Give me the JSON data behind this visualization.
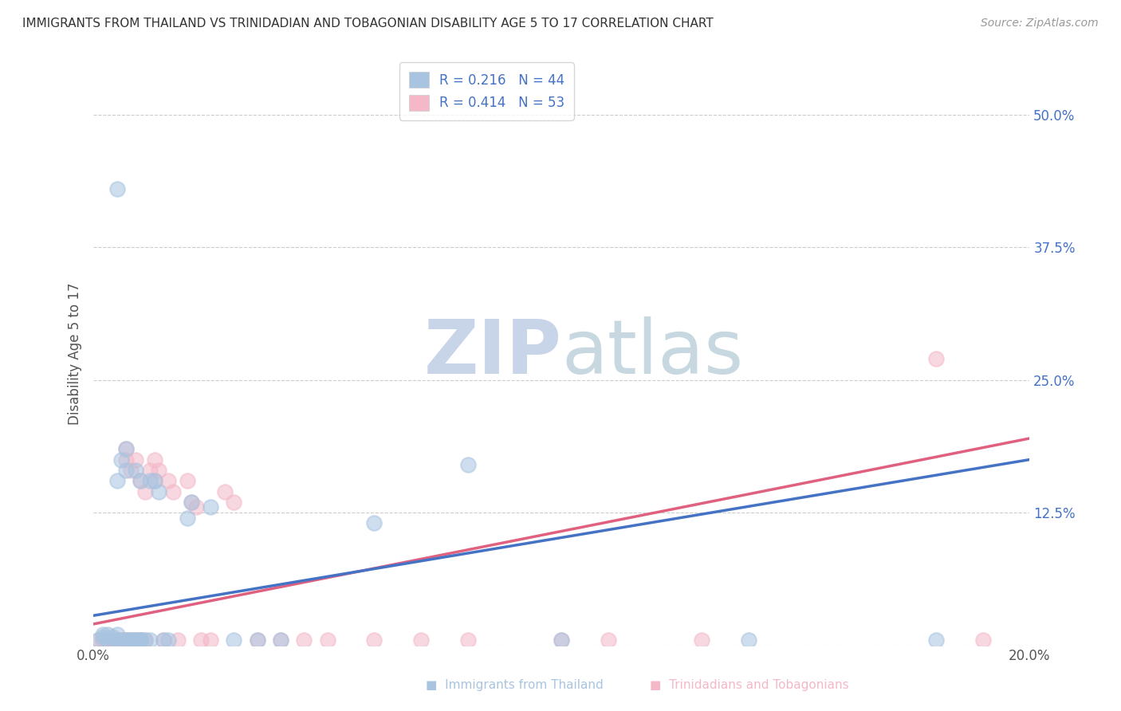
{
  "title": "IMMIGRANTS FROM THAILAND VS TRINIDADIAN AND TOBAGONIAN DISABILITY AGE 5 TO 17 CORRELATION CHART",
  "source": "Source: ZipAtlas.com",
  "ylabel": "Disability Age 5 to 17",
  "xlabel": "",
  "xlim": [
    0.0,
    0.2
  ],
  "ylim": [
    0.0,
    0.55
  ],
  "xticks": [
    0.0,
    0.05,
    0.1,
    0.15,
    0.2
  ],
  "xticklabels": [
    "0.0%",
    "",
    "",
    "",
    "20.0%"
  ],
  "yticks": [
    0.0,
    0.125,
    0.25,
    0.375,
    0.5
  ],
  "yticklabels": [
    "",
    "12.5%",
    "25.0%",
    "37.5%",
    "50.0%"
  ],
  "legend_labels": [
    "R = 0.216   N = 44",
    "R = 0.414   N = 53"
  ],
  "thailand_color": "#a8c4e0",
  "trinidad_color": "#f4b8c8",
  "trendline_thailand_color": "#4472c4",
  "trendline_trinidad_color": "#e06080",
  "thailand_trendline": [
    [
      0.0,
      0.028
    ],
    [
      0.2,
      0.175
    ]
  ],
  "trinidad_trendline": [
    [
      0.0,
      0.02
    ],
    [
      0.2,
      0.195
    ]
  ],
  "thailand_scatter": [
    [
      0.001,
      0.005
    ],
    [
      0.002,
      0.008
    ],
    [
      0.002,
      0.01
    ],
    [
      0.003,
      0.005
    ],
    [
      0.003,
      0.01
    ],
    [
      0.004,
      0.008
    ],
    [
      0.004,
      0.005
    ],
    [
      0.005,
      0.01
    ],
    [
      0.005,
      0.005
    ],
    [
      0.006,
      0.005
    ],
    [
      0.007,
      0.005
    ],
    [
      0.007,
      0.005
    ],
    [
      0.008,
      0.005
    ],
    [
      0.008,
      0.005
    ],
    [
      0.009,
      0.005
    ],
    [
      0.009,
      0.005
    ],
    [
      0.01,
      0.005
    ],
    [
      0.01,
      0.005
    ],
    [
      0.01,
      0.005
    ],
    [
      0.011,
      0.005
    ],
    [
      0.005,
      0.155
    ],
    [
      0.006,
      0.175
    ],
    [
      0.007,
      0.165
    ],
    [
      0.007,
      0.185
    ],
    [
      0.009,
      0.165
    ],
    [
      0.01,
      0.155
    ],
    [
      0.012,
      0.005
    ],
    [
      0.012,
      0.155
    ],
    [
      0.013,
      0.155
    ],
    [
      0.014,
      0.145
    ],
    [
      0.015,
      0.005
    ],
    [
      0.016,
      0.005
    ],
    [
      0.02,
      0.12
    ],
    [
      0.021,
      0.135
    ],
    [
      0.025,
      0.13
    ],
    [
      0.03,
      0.005
    ],
    [
      0.035,
      0.005
    ],
    [
      0.04,
      0.005
    ],
    [
      0.06,
      0.115
    ],
    [
      0.1,
      0.005
    ],
    [
      0.14,
      0.005
    ],
    [
      0.18,
      0.005
    ],
    [
      0.005,
      0.43
    ],
    [
      0.08,
      0.17
    ]
  ],
  "trinidad_scatter": [
    [
      0.001,
      0.005
    ],
    [
      0.002,
      0.005
    ],
    [
      0.002,
      0.005
    ],
    [
      0.003,
      0.005
    ],
    [
      0.003,
      0.005
    ],
    [
      0.004,
      0.005
    ],
    [
      0.004,
      0.005
    ],
    [
      0.005,
      0.005
    ],
    [
      0.005,
      0.005
    ],
    [
      0.006,
      0.005
    ],
    [
      0.006,
      0.005
    ],
    [
      0.007,
      0.005
    ],
    [
      0.007,
      0.005
    ],
    [
      0.008,
      0.005
    ],
    [
      0.008,
      0.005
    ],
    [
      0.009,
      0.005
    ],
    [
      0.009,
      0.005
    ],
    [
      0.01,
      0.005
    ],
    [
      0.01,
      0.005
    ],
    [
      0.011,
      0.005
    ],
    [
      0.007,
      0.175
    ],
    [
      0.007,
      0.185
    ],
    [
      0.008,
      0.165
    ],
    [
      0.009,
      0.175
    ],
    [
      0.01,
      0.155
    ],
    [
      0.011,
      0.145
    ],
    [
      0.012,
      0.165
    ],
    [
      0.013,
      0.175
    ],
    [
      0.013,
      0.155
    ],
    [
      0.014,
      0.165
    ],
    [
      0.015,
      0.005
    ],
    [
      0.016,
      0.155
    ],
    [
      0.017,
      0.145
    ],
    [
      0.018,
      0.005
    ],
    [
      0.02,
      0.155
    ],
    [
      0.021,
      0.135
    ],
    [
      0.022,
      0.13
    ],
    [
      0.023,
      0.005
    ],
    [
      0.025,
      0.005
    ],
    [
      0.028,
      0.145
    ],
    [
      0.03,
      0.135
    ],
    [
      0.035,
      0.005
    ],
    [
      0.04,
      0.005
    ],
    [
      0.045,
      0.005
    ],
    [
      0.05,
      0.005
    ],
    [
      0.06,
      0.005
    ],
    [
      0.07,
      0.005
    ],
    [
      0.08,
      0.005
    ],
    [
      0.1,
      0.005
    ],
    [
      0.11,
      0.005
    ],
    [
      0.13,
      0.005
    ],
    [
      0.18,
      0.27
    ],
    [
      0.19,
      0.005
    ]
  ]
}
